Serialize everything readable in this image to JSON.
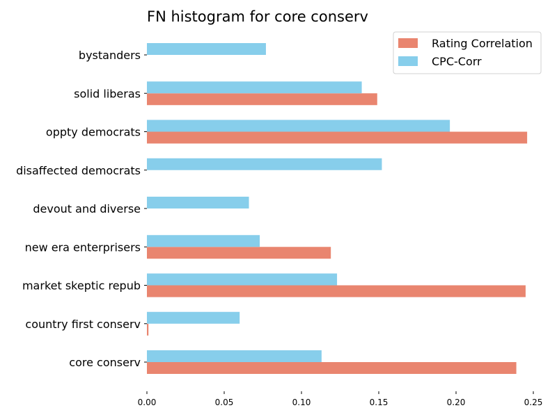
{
  "chart_data": {
    "type": "bar",
    "orientation": "horizontal",
    "title": "FN histogram for core conserv",
    "xlabel": "",
    "ylabel": "",
    "xlim": [
      0,
      0.25
    ],
    "xticks": [
      "0.00",
      "0.05",
      "0.10",
      "0.15",
      "0.20",
      "0.25"
    ],
    "categories": [
      "core conserv",
      "country first conserv",
      "market skeptic repub",
      "new era enterprisers",
      "devout and diverse",
      "disaffected democrats",
      "oppty democrats",
      "solid liberas",
      "bystanders"
    ],
    "series": [
      {
        "name": "Rating Correlation",
        "color": "#e9856f",
        "values": [
          0.239,
          0.001,
          0.245,
          0.119,
          0.0,
          0.0,
          0.246,
          0.149,
          0.0
        ]
      },
      {
        "name": "CPC-Corr",
        "color": "#87ceeb",
        "values": [
          0.113,
          0.06,
          0.123,
          0.073,
          0.066,
          0.152,
          0.196,
          0.139,
          0.077
        ]
      }
    ],
    "legend_position": "top-right",
    "grid": false
  }
}
